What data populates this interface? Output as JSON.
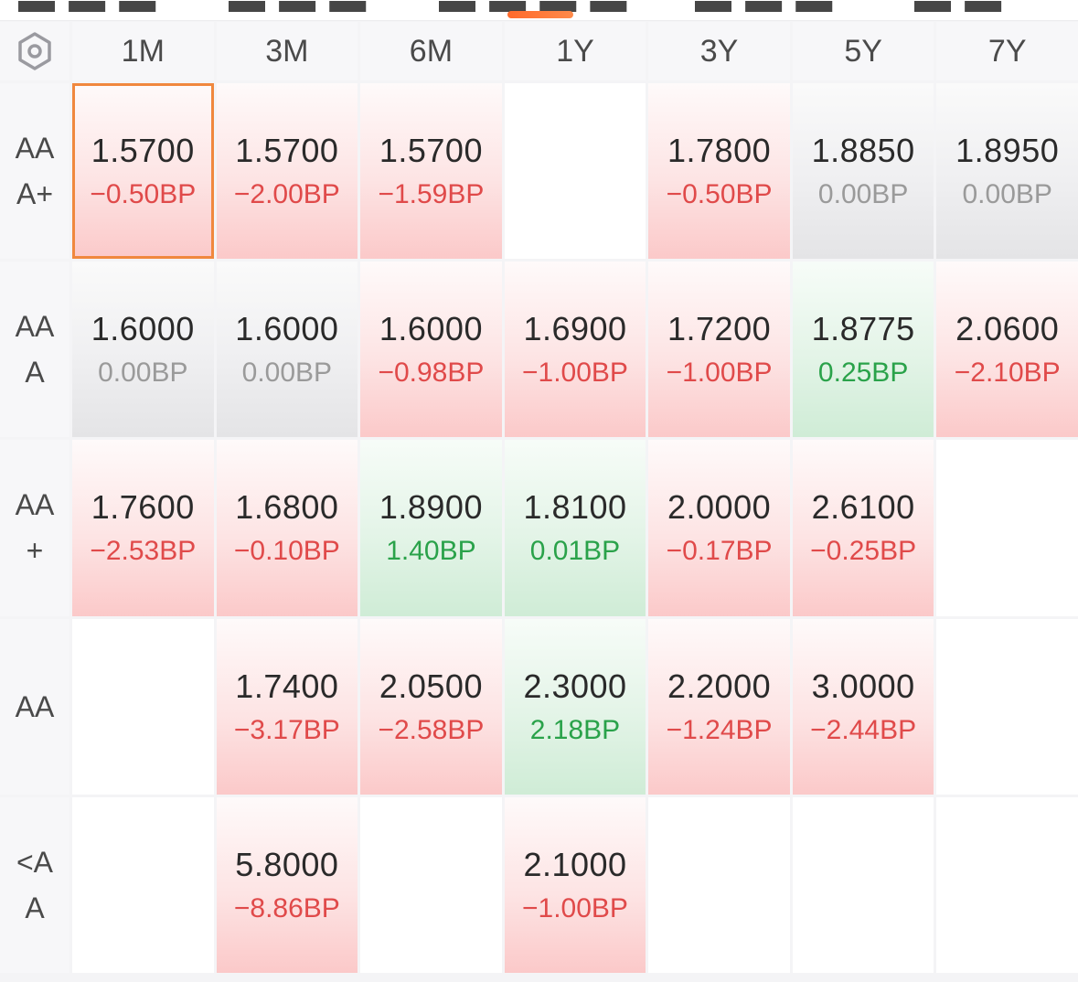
{
  "header": {
    "columns": [
      "1M",
      "3M",
      "6M",
      "1Y",
      "3Y",
      "5Y",
      "7Y"
    ]
  },
  "colors": {
    "up": "#e04a4a",
    "down": "#2aa24a",
    "flat": "#9a9a9a",
    "selected_border": "#f0883e",
    "tab_indicator": "#ff6a2b"
  },
  "rows": [
    {
      "label": "AAA+",
      "cells": [
        {
          "value": "1.5700",
          "change": "−0.50BP",
          "tone": "red",
          "selected": true
        },
        {
          "value": "1.5700",
          "change": "−2.00BP",
          "tone": "red"
        },
        {
          "value": "1.5700",
          "change": "−1.59BP",
          "tone": "red"
        },
        null,
        {
          "value": "1.7800",
          "change": "−0.50BP",
          "tone": "red"
        },
        {
          "value": "1.8850",
          "change": "0.00BP",
          "tone": "gray"
        },
        {
          "value": "1.8950",
          "change": "0.00BP",
          "tone": "gray"
        }
      ]
    },
    {
      "label": "AAA",
      "cells": [
        {
          "value": "1.6000",
          "change": "0.00BP",
          "tone": "gray"
        },
        {
          "value": "1.6000",
          "change": "0.00BP",
          "tone": "gray"
        },
        {
          "value": "1.6000",
          "change": "−0.98BP",
          "tone": "red"
        },
        {
          "value": "1.6900",
          "change": "−1.00BP",
          "tone": "red"
        },
        {
          "value": "1.7200",
          "change": "−1.00BP",
          "tone": "red"
        },
        {
          "value": "1.8775",
          "change": "0.25BP",
          "tone": "green"
        },
        {
          "value": "2.0600",
          "change": "−2.10BP",
          "tone": "red"
        }
      ]
    },
    {
      "label": "AA+",
      "cells": [
        {
          "value": "1.7600",
          "change": "−2.53BP",
          "tone": "red"
        },
        {
          "value": "1.6800",
          "change": "−0.10BP",
          "tone": "red"
        },
        {
          "value": "1.8900",
          "change": "1.40BP",
          "tone": "green"
        },
        {
          "value": "1.8100",
          "change": "0.01BP",
          "tone": "green"
        },
        {
          "value": "2.0000",
          "change": "−0.17BP",
          "tone": "red"
        },
        {
          "value": "2.6100",
          "change": "−0.25BP",
          "tone": "red"
        },
        null
      ]
    },
    {
      "label": "AA",
      "cells": [
        null,
        {
          "value": "1.7400",
          "change": "−3.17BP",
          "tone": "red"
        },
        {
          "value": "2.0500",
          "change": "−2.58BP",
          "tone": "red"
        },
        {
          "value": "2.3000",
          "change": "2.18BP",
          "tone": "green"
        },
        {
          "value": "2.2000",
          "change": "−1.24BP",
          "tone": "red"
        },
        {
          "value": "3.0000",
          "change": "−2.44BP",
          "tone": "red"
        },
        null
      ]
    },
    {
      "label": "<AA",
      "cells": [
        null,
        {
          "value": "5.8000",
          "change": "−8.86BP",
          "tone": "red"
        },
        null,
        {
          "value": "2.1000",
          "change": "−1.00BP",
          "tone": "red"
        },
        null,
        null,
        null
      ]
    }
  ]
}
